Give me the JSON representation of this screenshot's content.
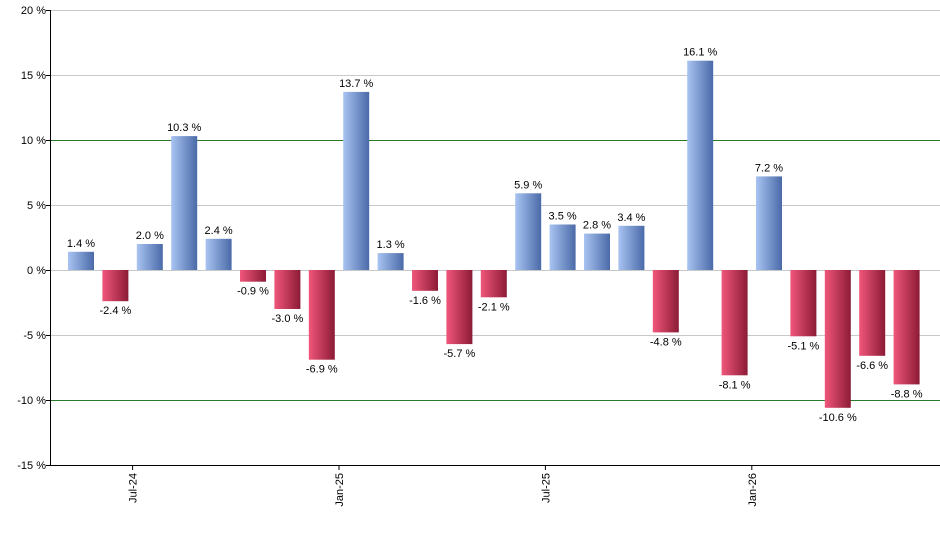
{
  "chart_data": {
    "type": "bar",
    "title": "",
    "xlabel": "",
    "ylabel": "",
    "ylim": [
      -15,
      20
    ],
    "y_ticks": [
      20,
      15,
      10,
      5,
      0,
      -5,
      -10,
      -15
    ],
    "y_tick_suffix": " %",
    "x_tick_labels": [
      {
        "label": "Jul-24",
        "after_index": 1
      },
      {
        "label": "Jan-25",
        "after_index": 7
      },
      {
        "label": "Jul-25",
        "after_index": 13
      },
      {
        "label": "Jan-26",
        "after_index": 19
      }
    ],
    "reference_lines": [
      10,
      -10
    ],
    "values": [
      1.4,
      -2.4,
      2.0,
      10.3,
      2.4,
      -0.9,
      -3.0,
      -6.9,
      13.7,
      1.3,
      -1.6,
      -5.7,
      -2.1,
      5.9,
      3.5,
      2.8,
      3.4,
      -4.8,
      16.1,
      -8.1,
      7.2,
      -5.1,
      -10.6,
      -6.6,
      -8.8
    ],
    "data_labels": [
      "1.4 %",
      "-2.4 %",
      "2.0 %",
      "10.3 %",
      "2.4 %",
      "-0.9 %",
      "-3.0 %",
      "-6.9 %",
      "13.7 %",
      "1.3 %",
      "-1.6 %",
      "-5.7 %",
      "-2.1 %",
      "5.9 %",
      "3.5 %",
      "2.8 %",
      "3.4 %",
      "-4.8 %",
      "16.1 %",
      "-8.1 %",
      "7.2 %",
      "-5.1 %",
      "-10.6 %",
      "-6.6 %",
      "-8.8 %"
    ],
    "grid": true,
    "legend": "none",
    "colors": {
      "positive_light": "#a9c4f2",
      "positive_dark": "#4a6aa8",
      "negative_light": "#f0567a",
      "negative_dark": "#8c1b36",
      "gridline": "#c8c8c8",
      "reference_line": "#2a7a2a",
      "axis": "#000000"
    }
  }
}
